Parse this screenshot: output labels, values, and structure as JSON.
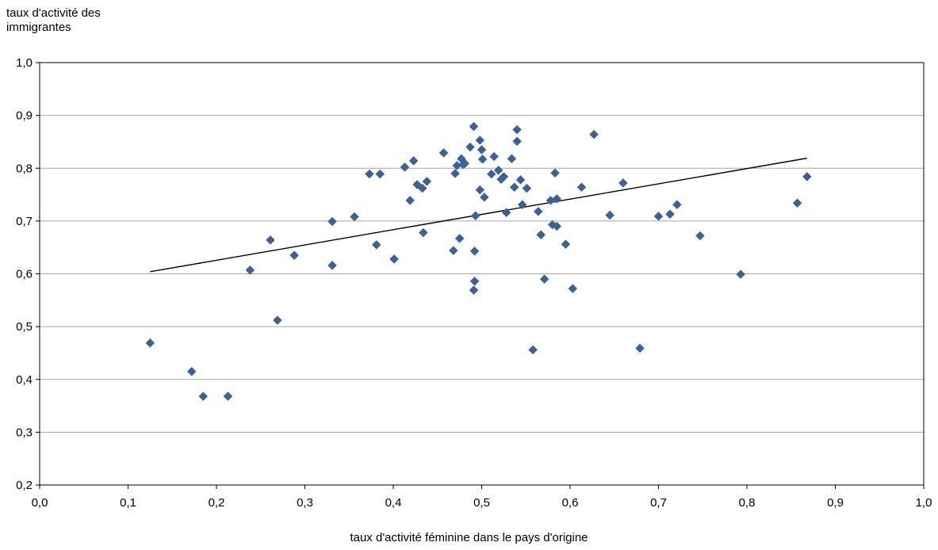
{
  "chart_data": {
    "type": "scatter",
    "ylabel": "taux d'activité des immigrantes",
    "xlabel": "taux d'activité féminine dans le pays d'origine",
    "xlim": [
      0.0,
      1.0
    ],
    "ylim": [
      0.2,
      1.0
    ],
    "x_ticks": [
      0.0,
      0.1,
      0.2,
      0.3,
      0.4,
      0.5,
      0.6,
      0.7,
      0.8,
      0.9,
      1.0
    ],
    "y_ticks": [
      0.2,
      0.3,
      0.4,
      0.5,
      0.6,
      0.7,
      0.8,
      0.9,
      1.0
    ],
    "x_tick_labels": [
      "0,0",
      "0,1",
      "0,2",
      "0,3",
      "0,4",
      "0,5",
      "0,6",
      "0,7",
      "0,8",
      "0,9",
      "1,0"
    ],
    "y_tick_labels": [
      "0,2",
      "0,3",
      "0,4",
      "0,5",
      "0,6",
      "0,7",
      "0,8",
      "0,9",
      "1,0"
    ],
    "grid": "horizontal",
    "marker_color": "#3b6296",
    "trendline_color": "#000000",
    "trendline": [
      [
        0.125,
        0.604
      ],
      [
        0.868,
        0.819
      ]
    ],
    "points": [
      [
        0.125,
        0.469
      ],
      [
        0.172,
        0.415
      ],
      [
        0.185,
        0.368
      ],
      [
        0.213,
        0.368
      ],
      [
        0.238,
        0.607
      ],
      [
        0.261,
        0.664
      ],
      [
        0.269,
        0.512
      ],
      [
        0.288,
        0.635
      ],
      [
        0.331,
        0.699
      ],
      [
        0.331,
        0.616
      ],
      [
        0.356,
        0.708
      ],
      [
        0.373,
        0.789
      ],
      [
        0.381,
        0.655
      ],
      [
        0.385,
        0.789
      ],
      [
        0.401,
        0.628
      ],
      [
        0.413,
        0.802
      ],
      [
        0.419,
        0.739
      ],
      [
        0.423,
        0.814
      ],
      [
        0.427,
        0.769
      ],
      [
        0.433,
        0.762
      ],
      [
        0.434,
        0.678
      ],
      [
        0.438,
        0.775
      ],
      [
        0.457,
        0.829
      ],
      [
        0.468,
        0.644
      ],
      [
        0.47,
        0.79
      ],
      [
        0.472,
        0.805
      ],
      [
        0.475,
        0.667
      ],
      [
        0.477,
        0.818
      ],
      [
        0.479,
        0.807
      ],
      [
        0.481,
        0.809
      ],
      [
        0.487,
        0.84
      ],
      [
        0.491,
        0.879
      ],
      [
        0.491,
        0.569
      ],
      [
        0.492,
        0.586
      ],
      [
        0.492,
        0.643
      ],
      [
        0.493,
        0.71
      ],
      [
        0.498,
        0.853
      ],
      [
        0.498,
        0.759
      ],
      [
        0.5,
        0.835
      ],
      [
        0.501,
        0.817
      ],
      [
        0.503,
        0.745
      ],
      [
        0.511,
        0.789
      ],
      [
        0.514,
        0.822
      ],
      [
        0.519,
        0.796
      ],
      [
        0.522,
        0.779
      ],
      [
        0.525,
        0.784
      ],
      [
        0.528,
        0.716
      ],
      [
        0.534,
        0.818
      ],
      [
        0.537,
        0.764
      ],
      [
        0.54,
        0.873
      ],
      [
        0.54,
        0.851
      ],
      [
        0.544,
        0.778
      ],
      [
        0.546,
        0.731
      ],
      [
        0.551,
        0.762
      ],
      [
        0.558,
        0.456
      ],
      [
        0.564,
        0.718
      ],
      [
        0.567,
        0.674
      ],
      [
        0.571,
        0.59
      ],
      [
        0.578,
        0.739
      ],
      [
        0.58,
        0.693
      ],
      [
        0.583,
        0.791
      ],
      [
        0.585,
        0.69
      ],
      [
        0.585,
        0.742
      ],
      [
        0.595,
        0.656
      ],
      [
        0.603,
        0.572
      ],
      [
        0.613,
        0.764
      ],
      [
        0.627,
        0.864
      ],
      [
        0.645,
        0.711
      ],
      [
        0.66,
        0.772
      ],
      [
        0.679,
        0.459
      ],
      [
        0.7,
        0.709
      ],
      [
        0.713,
        0.713
      ],
      [
        0.721,
        0.731
      ],
      [
        0.747,
        0.672
      ],
      [
        0.793,
        0.599
      ],
      [
        0.857,
        0.734
      ],
      [
        0.868,
        0.784
      ]
    ]
  }
}
